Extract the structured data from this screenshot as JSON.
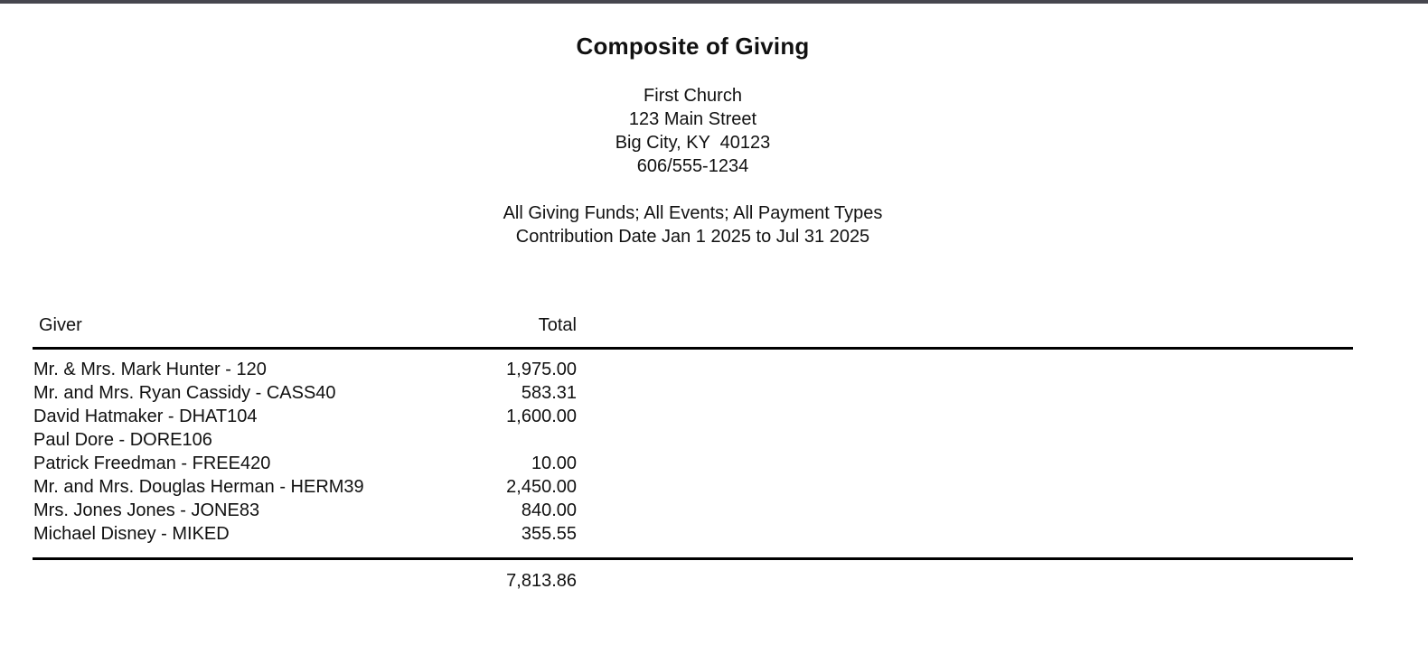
{
  "report": {
    "title": "Composite of Giving",
    "organization": {
      "name": "First Church",
      "address_line1": "123 Main Street",
      "address_line2": "Big City, KY  40123",
      "phone": "606/555-1234"
    },
    "filters": {
      "line1": "All Giving Funds; All Events; All Payment Types",
      "line2": "Contribution Date Jan 1 2025 to Jul 31 2025"
    },
    "table": {
      "columns": [
        "Giver",
        "Total"
      ],
      "rows": [
        {
          "giver": "Mr. & Mrs. Mark Hunter - 120",
          "total": "1,975.00"
        },
        {
          "giver": "Mr. and Mrs. Ryan Cassidy - CASS40",
          "total": "583.31"
        },
        {
          "giver": "David Hatmaker - DHAT104",
          "total": "1,600.00"
        },
        {
          "giver": "Paul Dore - DORE106",
          "total": ""
        },
        {
          "giver": "Patrick Freedman - FREE420",
          "total": "10.00"
        },
        {
          "giver": "Mr. and Mrs. Douglas Herman - HERM39",
          "total": "2,450.00"
        },
        {
          "giver": "Mrs. Jones Jones - JONE83",
          "total": "840.00"
        },
        {
          "giver": "Michael Disney - MIKED",
          "total": "355.55"
        }
      ],
      "grand_total": "7,813.86"
    },
    "colors": {
      "top_border": "#46464e",
      "rule": "#000000",
      "text": "#111111"
    }
  }
}
